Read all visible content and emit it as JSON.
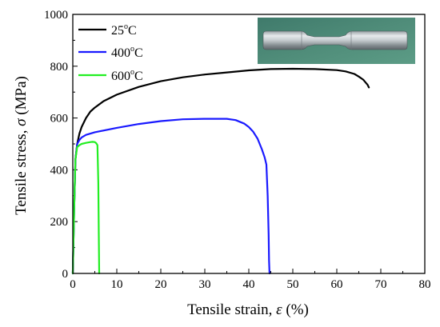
{
  "chart_data": {
    "type": "line",
    "title": "",
    "xlabel": "Tensile strain, ",
    "xlabel_symbol": "ε",
    "xlabel_unit": " (%)",
    "ylabel": "Tensile stress, ",
    "ylabel_symbol": "σ",
    "ylabel_unit": " (MPa)",
    "xlim": [
      0,
      80
    ],
    "ylim": [
      0,
      1000
    ],
    "xticks": [
      "0",
      "10",
      "20",
      "30",
      "40",
      "50",
      "60",
      "70",
      "80"
    ],
    "yticks": [
      "0",
      "200",
      "400",
      "600",
      "800",
      "1000"
    ],
    "grid": false,
    "legend_position": "top-left",
    "inset_photo": "tensile-specimen-photo",
    "series": [
      {
        "name": "25°C",
        "label_main": "25",
        "label_sup": "o",
        "label_tail": "C",
        "color": "#000000",
        "x": [
          0,
          0.3,
          0.6,
          1,
          1.5,
          2,
          3,
          4,
          5,
          7,
          10,
          15,
          20,
          25,
          30,
          35,
          40,
          45,
          50,
          55,
          60,
          62,
          64,
          65,
          66,
          66.5,
          67,
          67.3
        ],
        "y": [
          0,
          250,
          440,
          500,
          540,
          565,
          600,
          625,
          640,
          665,
          690,
          720,
          742,
          757,
          768,
          776,
          784,
          789,
          790,
          789,
          785,
          780,
          770,
          760,
          748,
          738,
          728,
          718
        ]
      },
      {
        "name": "400°C",
        "label_main": "400",
        "label_sup": "o",
        "label_tail": "C",
        "color": "#1a1aff",
        "x": [
          0,
          0.3,
          0.6,
          1,
          1.5,
          2,
          3,
          5,
          10,
          15,
          20,
          25,
          30,
          35,
          37,
          39,
          40,
          41,
          42,
          43,
          43.6,
          44,
          44.3,
          44.5,
          44.6,
          44.7
        ],
        "y": [
          0,
          250,
          440,
          500,
          515,
          525,
          535,
          545,
          562,
          577,
          588,
          595,
          597,
          597,
          592,
          578,
          565,
          547,
          520,
          478,
          448,
          420,
          300,
          150,
          50,
          0
        ]
      },
      {
        "name": "600°C",
        "label_main": "600",
        "label_sup": "o",
        "label_tail": "C",
        "color": "#22ee22",
        "x": [
          0,
          0.3,
          0.6,
          1,
          1.5,
          2,
          3,
          4,
          4.5,
          5,
          5.3,
          5.6,
          5.8,
          5.9,
          6.0
        ],
        "y": [
          0,
          250,
          440,
          488,
          495,
          500,
          504,
          507,
          508,
          507,
          503,
          495,
          350,
          150,
          0
        ]
      }
    ]
  }
}
